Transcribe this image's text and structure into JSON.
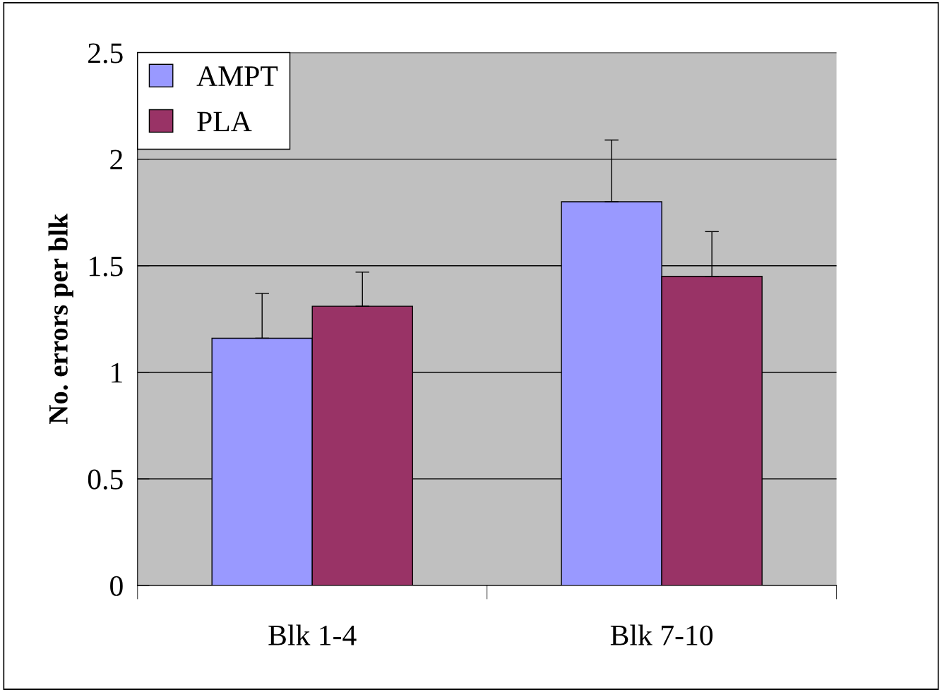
{
  "chart_data": {
    "type": "bar",
    "ylabel": "No. errors per blk",
    "categories": [
      "Blk 1-4",
      "Blk 7-10"
    ],
    "series": [
      {
        "name": "AMPT",
        "color": "#9999ff",
        "values": [
          1.16,
          1.8
        ],
        "errors": [
          [
            1.16,
            1.37
          ],
          [
            1.8,
            2.09
          ]
        ]
      },
      {
        "name": "PLA",
        "color": "#993366",
        "values": [
          1.31,
          1.45
        ],
        "errors": [
          [
            1.31,
            1.47
          ],
          [
            1.45,
            1.66
          ]
        ]
      }
    ],
    "ylim": [
      0,
      2.5
    ],
    "yticks": [
      0,
      0.5,
      1,
      1.5,
      2,
      2.5
    ],
    "grid": "y",
    "legend": "top left"
  }
}
